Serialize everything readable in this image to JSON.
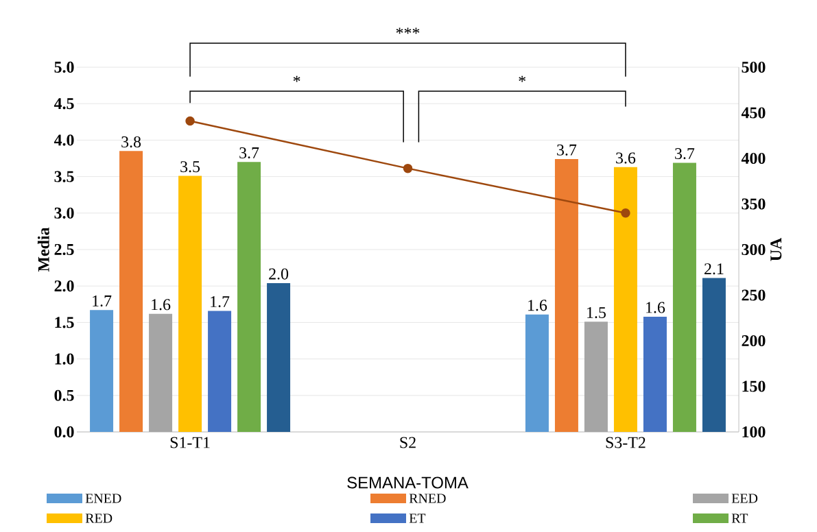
{
  "chart_data": {
    "type": "bar",
    "xlabel": "SEMANA-TOMA",
    "ylabel": "Media",
    "y2label": "UA",
    "categories": [
      "S1-T1",
      "S2",
      "S3-T2"
    ],
    "series": [
      {
        "name": "ENED",
        "color": "#5b9bd5",
        "values": [
          1.67,
          null,
          1.61
        ],
        "value_labels": [
          "1.7",
          null,
          "1.6"
        ]
      },
      {
        "name": "RNED",
        "color": "#ed7d31",
        "values": [
          3.85,
          null,
          3.74
        ],
        "value_labels": [
          "3.8",
          null,
          "3.7"
        ]
      },
      {
        "name": "EED",
        "color": "#a5a5a5",
        "values": [
          1.62,
          null,
          1.51
        ],
        "value_labels": [
          "1.6",
          null,
          "1.5"
        ]
      },
      {
        "name": "RED",
        "color": "#ffc000",
        "values": [
          3.51,
          null,
          3.63
        ],
        "value_labels": [
          "3.5",
          null,
          "3.6"
        ]
      },
      {
        "name": "ET",
        "color": "#4472c4",
        "values": [
          1.66,
          null,
          1.58
        ],
        "value_labels": [
          "1.7",
          null,
          "1.6"
        ]
      },
      {
        "name": "RT",
        "color": "#70ad47",
        "values": [
          3.7,
          null,
          3.69
        ],
        "value_labels": [
          "3.7",
          null,
          "3.7"
        ]
      },
      {
        "color": "#255e91",
        "values": [
          2.04,
          null,
          2.11
        ],
        "value_labels": [
          "2.0",
          null,
          "2.1"
        ]
      },
      {
        "type": "line",
        "axis": "y2",
        "color": "#9e480e",
        "marker": "circle",
        "values": [
          441,
          389,
          340
        ]
      }
    ],
    "ylim": [
      0,
      5
    ],
    "yticks": [
      {
        "value": 0,
        "label": "0.0"
      },
      {
        "value": 0.5,
        "label": "0.5"
      },
      {
        "value": 1,
        "label": "1.0"
      },
      {
        "value": 1.5,
        "label": "1.5"
      },
      {
        "value": 2,
        "label": "2.0"
      },
      {
        "value": 2.5,
        "label": "2.5"
      },
      {
        "value": 3,
        "label": "3.0"
      },
      {
        "value": 3.5,
        "label": "3.5"
      },
      {
        "value": 4,
        "label": "4.0"
      },
      {
        "value": 4.5,
        "label": "4.5"
      },
      {
        "value": 5,
        "label": "5.0"
      }
    ],
    "y2lim": [
      100,
      500
    ],
    "y2ticks": [
      100,
      150,
      200,
      250,
      300,
      350,
      400,
      450,
      500
    ],
    "grid": "y",
    "legend": "bottom",
    "annotations": [
      "***",
      "*",
      "*"
    ]
  }
}
